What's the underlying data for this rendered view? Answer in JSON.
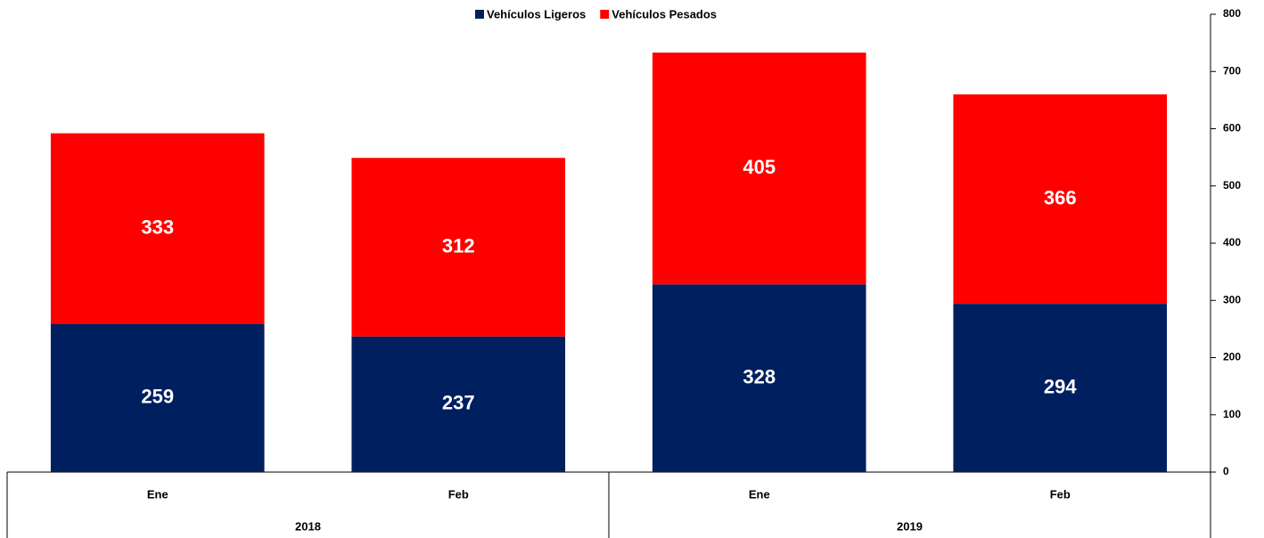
{
  "chart_data": {
    "type": "stacked_bar",
    "categories": [
      "Ene",
      "Feb",
      "Ene",
      "Feb"
    ],
    "groups": [
      "2018",
      "2019"
    ],
    "series": [
      {
        "name": "Vehículos Ligeros",
        "color": "#001f5f",
        "values": [
          259,
          237,
          328,
          294
        ]
      },
      {
        "name": "Vehículos Pesados",
        "color": "#ff0000",
        "values": [
          333,
          312,
          405,
          366
        ]
      }
    ],
    "ylim": [
      0,
      800
    ],
    "yticks": [
      0,
      100,
      200,
      300,
      400,
      500,
      600,
      700,
      800
    ],
    "y_axis_side": "right",
    "legend": "top"
  }
}
